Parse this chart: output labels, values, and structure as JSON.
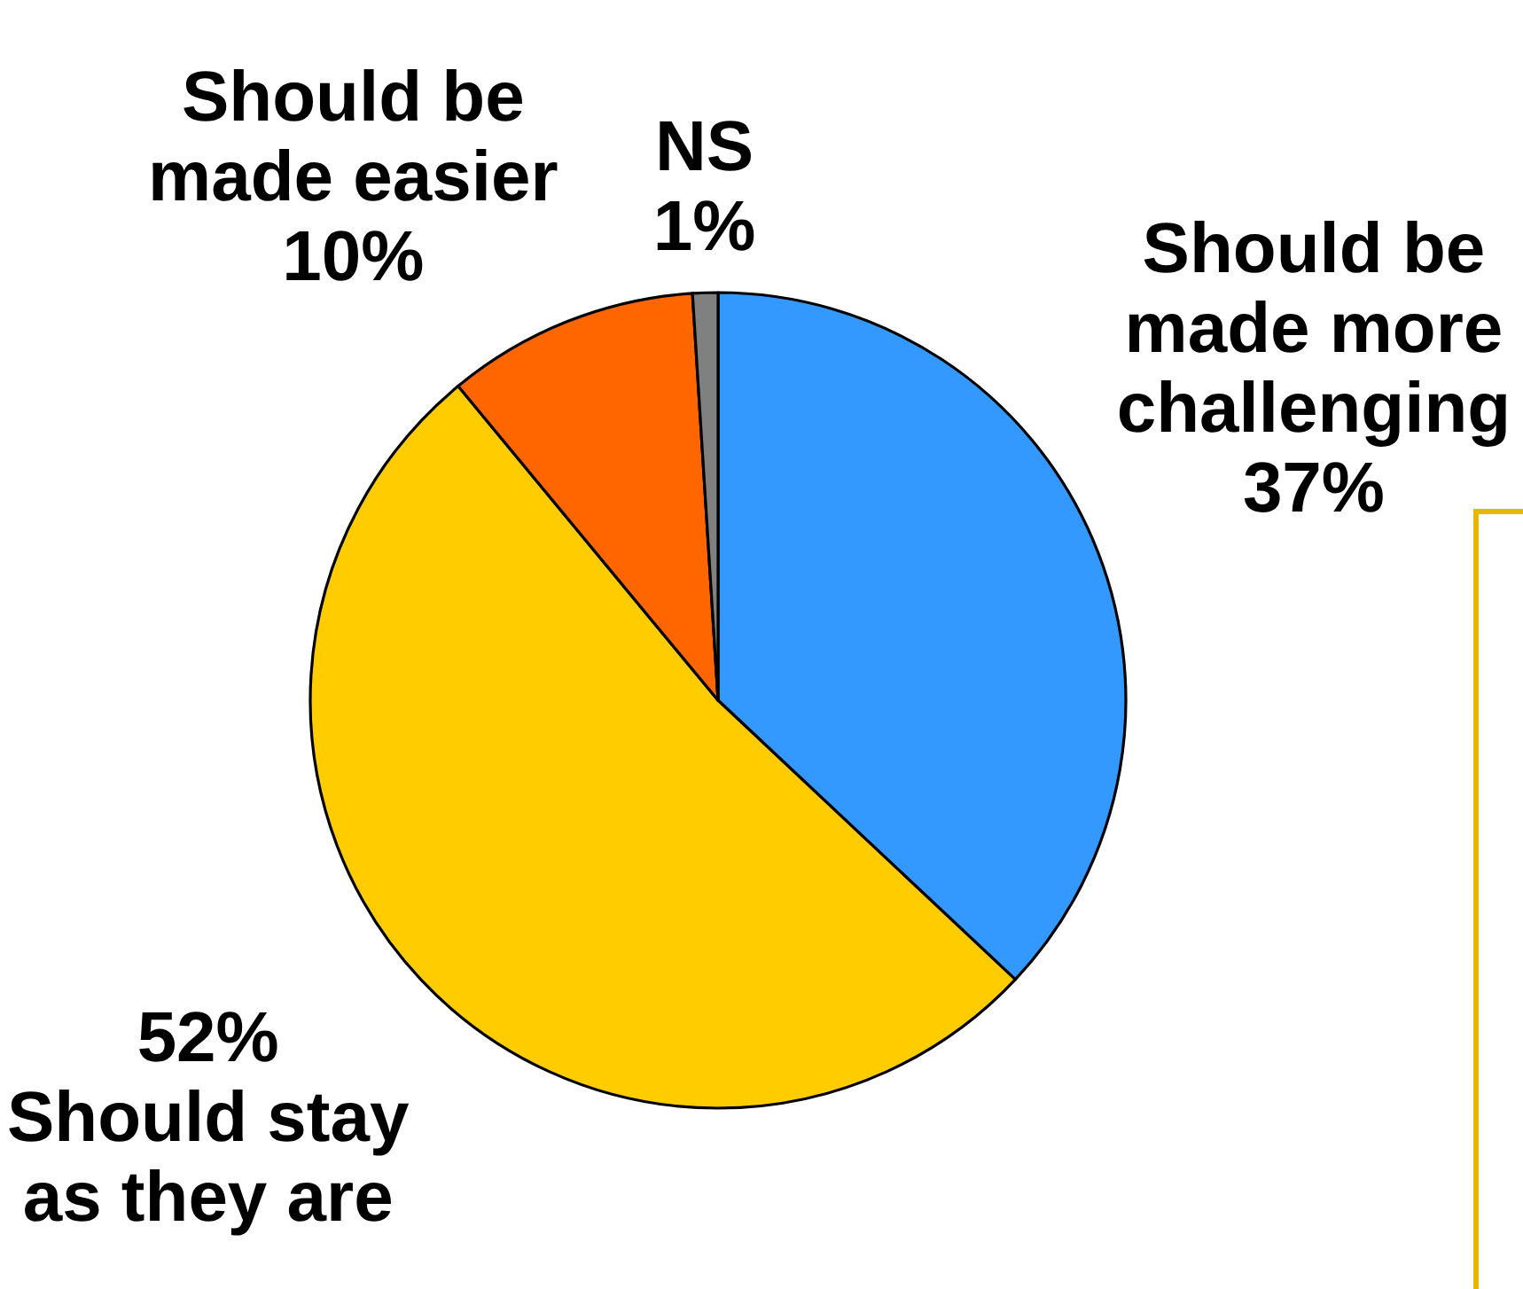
{
  "chart_data": {
    "type": "pie",
    "categories": [
      "Should be\nmade more\nchallenging",
      "Should stay\nas they are",
      "Should be\nmade easier",
      "NS"
    ],
    "values": [
      37,
      52,
      10,
      1
    ],
    "colors": [
      "#3399ff",
      "#ffcc00",
      "#ff6600",
      "#808080"
    ],
    "value_labels": [
      "37%",
      "52%",
      "10%",
      "1%"
    ]
  }
}
